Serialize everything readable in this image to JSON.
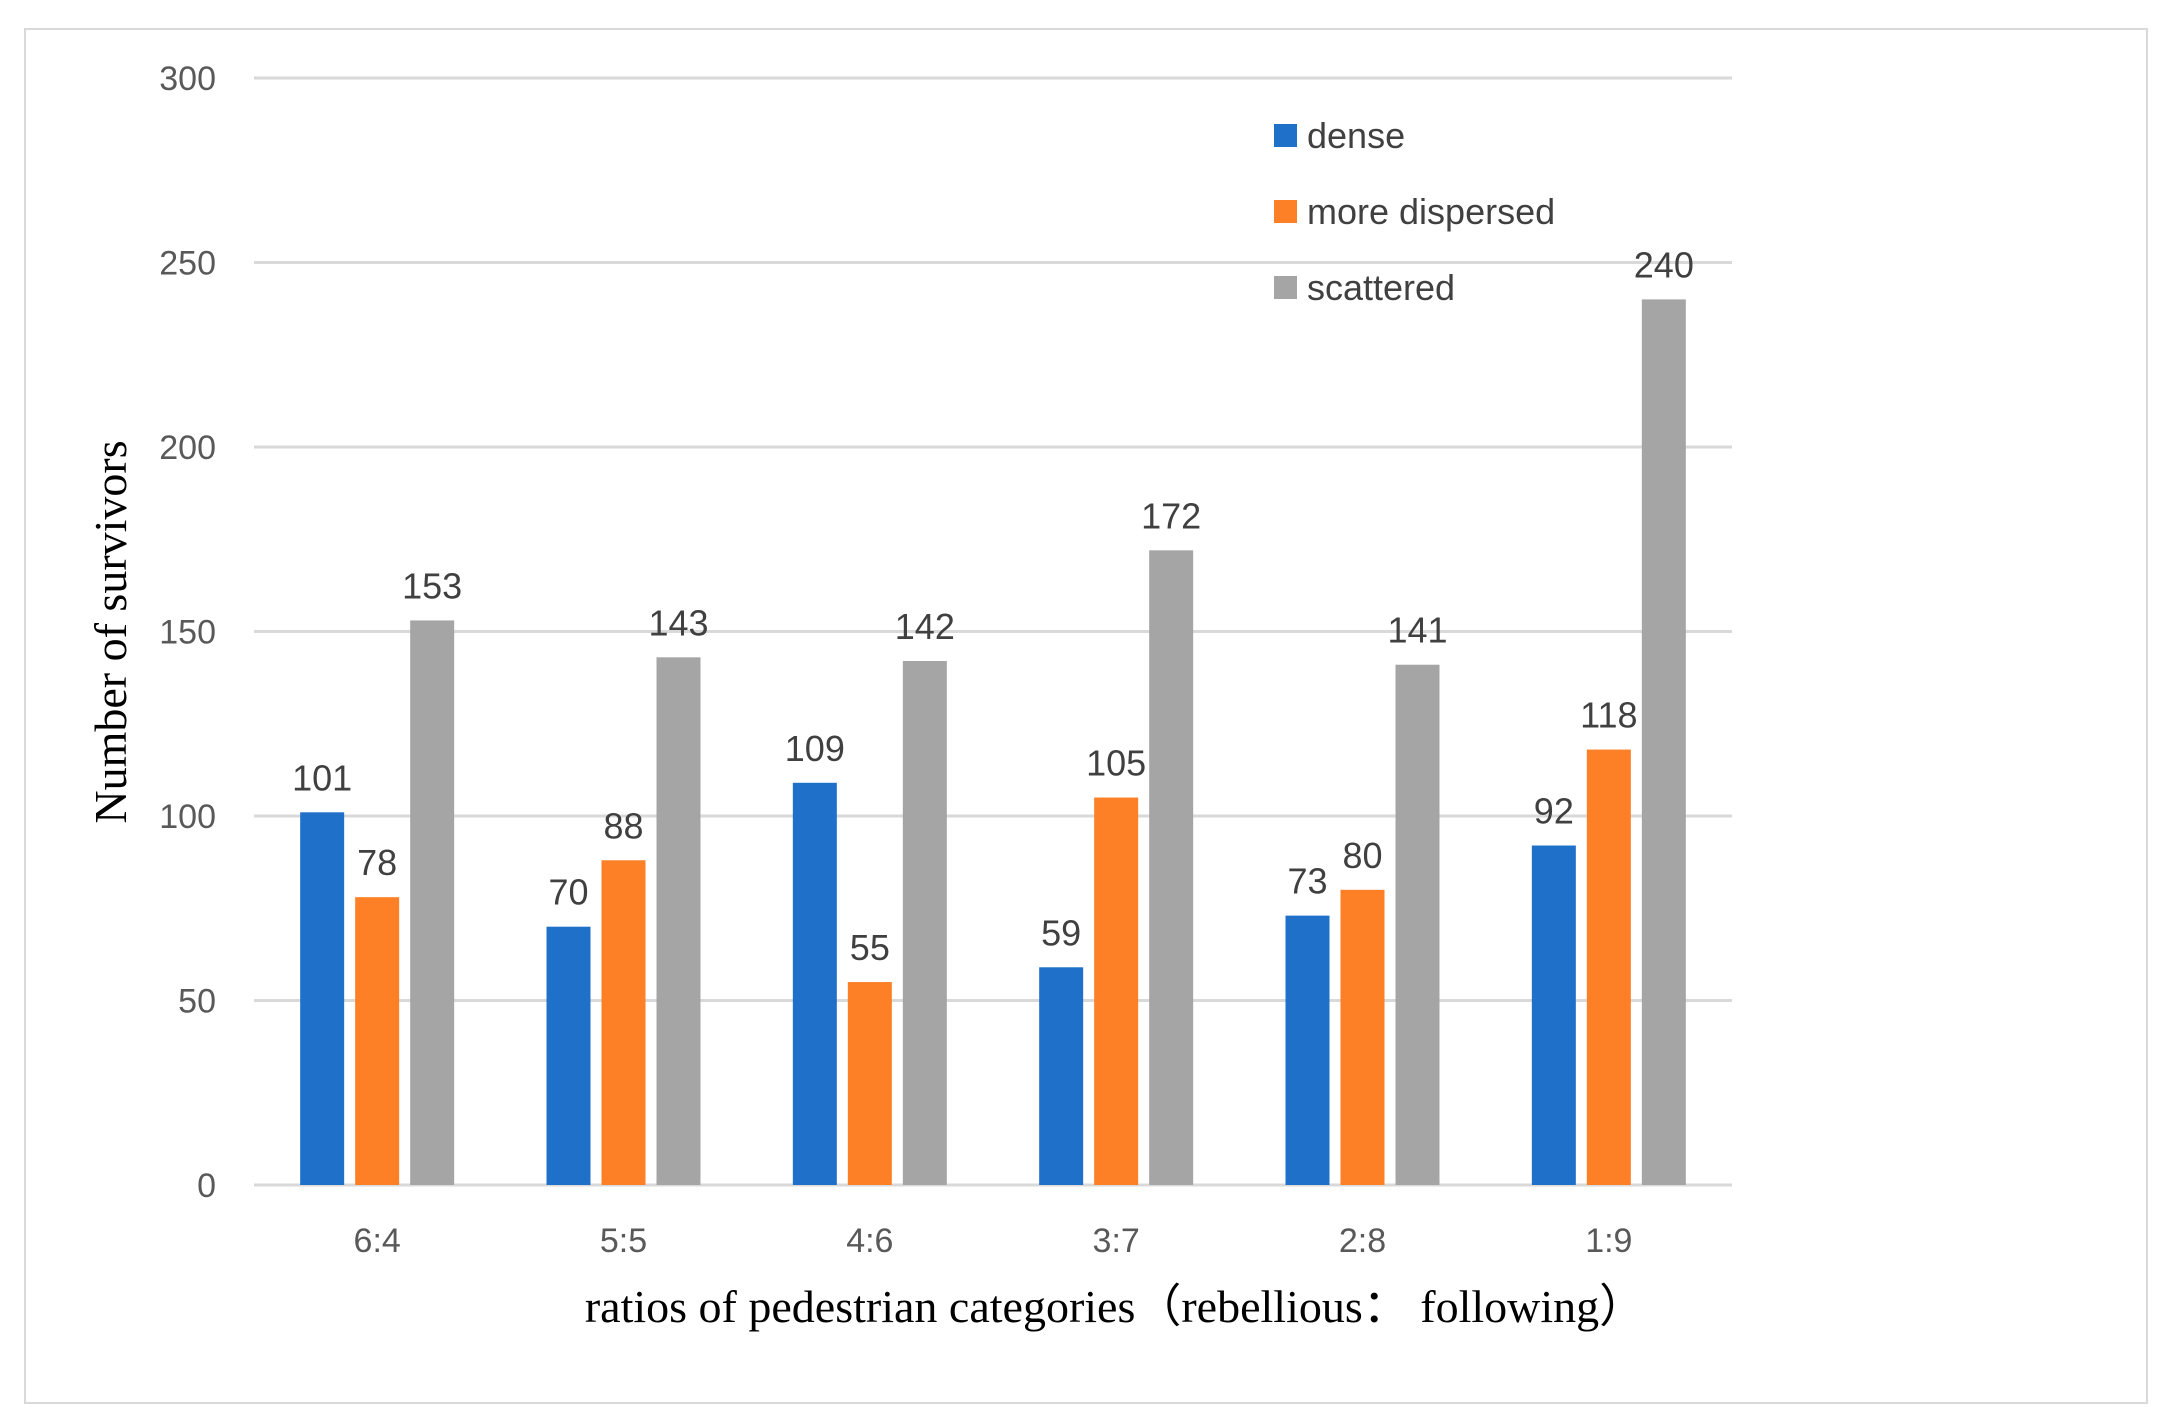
{
  "chart_data": {
    "type": "bar",
    "title": "",
    "xlabel": "ratios of pedestrian categories（rebellious： following）",
    "ylabel": "Number of survivors",
    "ylim": [
      0,
      300
    ],
    "yticks": [
      0,
      50,
      100,
      150,
      200,
      250,
      300
    ],
    "grid": true,
    "legend": "top-right",
    "categories": [
      "6:4",
      "5:5",
      "4:6",
      "3:7",
      "2:8",
      "1:9"
    ],
    "series": [
      {
        "name": "dense",
        "color": "#1f70c9",
        "values": [
          101,
          70,
          109,
          59,
          73,
          92
        ]
      },
      {
        "name": "more dispersed",
        "color": "#fd7f26",
        "values": [
          78,
          88,
          55,
          105,
          80,
          118
        ]
      },
      {
        "name": "scattered",
        "color": "#a5a5a5",
        "values": [
          153,
          143,
          142,
          172,
          141,
          240
        ]
      }
    ]
  }
}
